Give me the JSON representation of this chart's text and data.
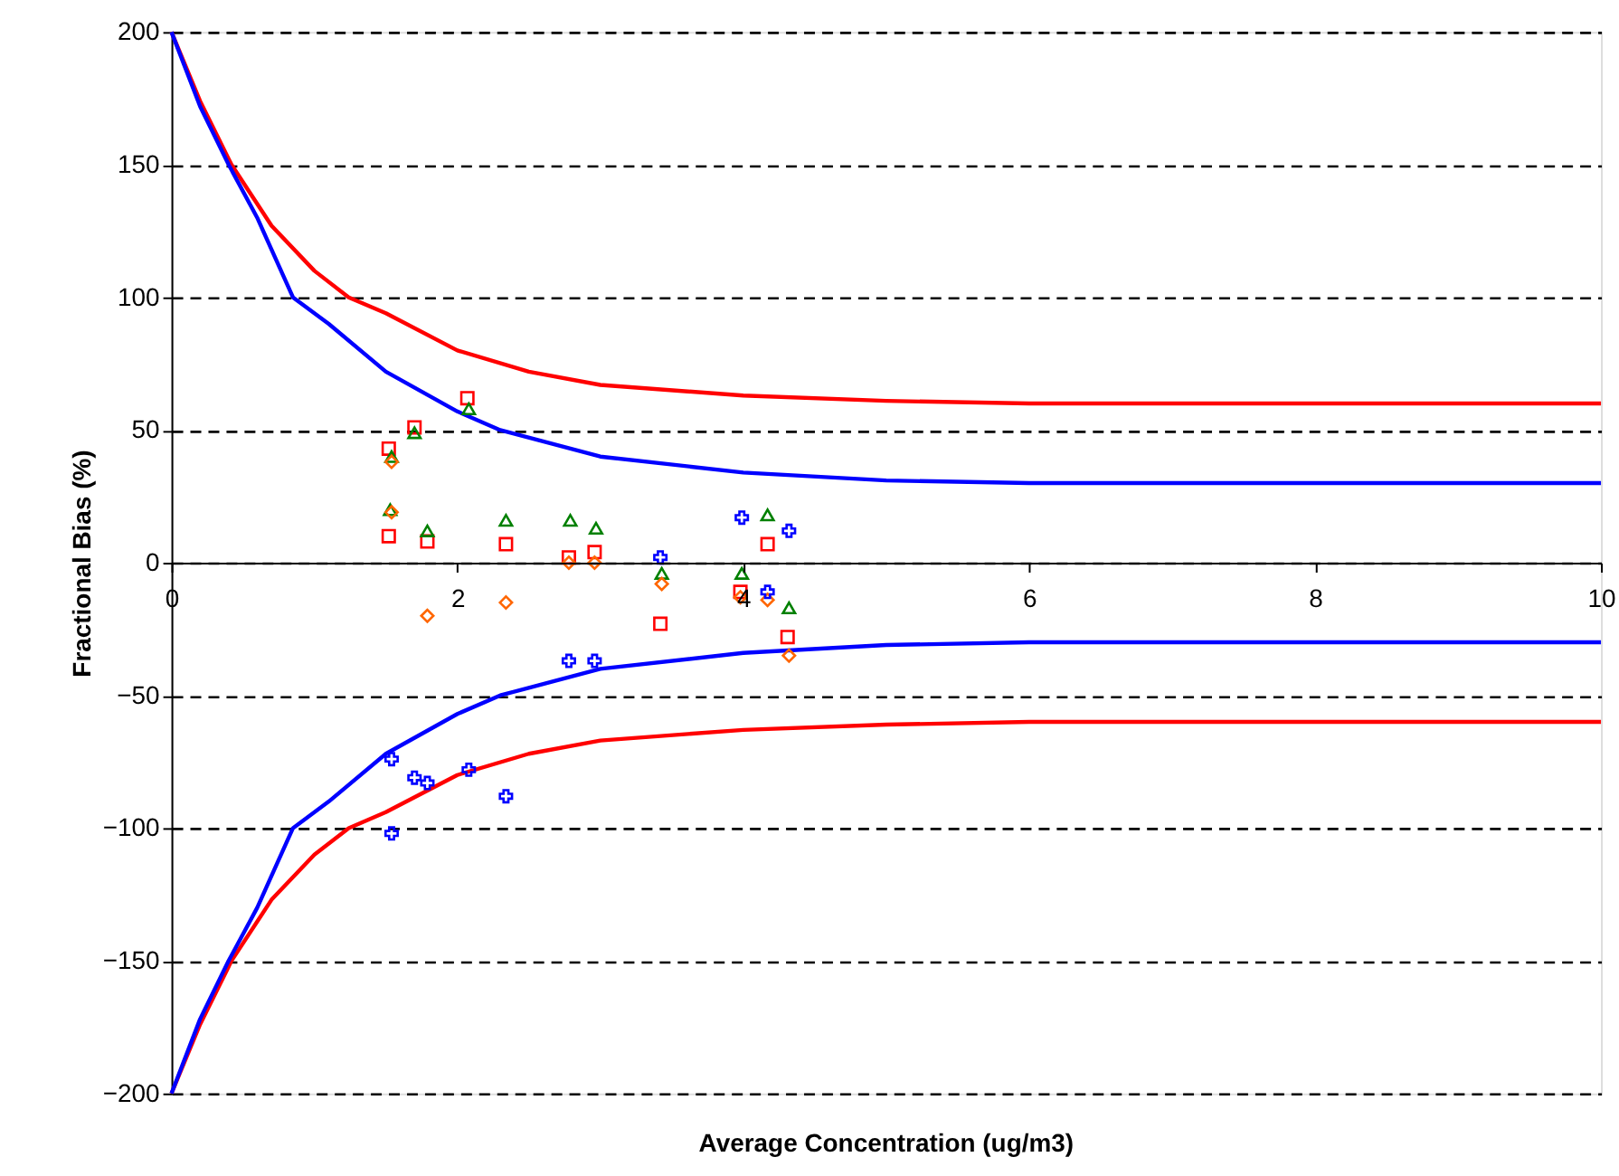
{
  "chart_data": {
    "type": "scatter",
    "xlabel": "Average Concentration (ug/m3)",
    "ylabel": "Fractional Bias (%)",
    "xlim": [
      0,
      10
    ],
    "xticks": [
      0,
      2,
      4,
      6,
      8,
      10
    ],
    "ylim": [
      -200,
      200
    ],
    "yticks": [
      -200,
      -150,
      -100,
      -50,
      0,
      50,
      100,
      150,
      200
    ],
    "grid": "y",
    "series": [
      {
        "type": "line",
        "color": "#ff0000",
        "x": [
          0,
          0.2,
          0.42,
          0.7,
          1.0,
          1.24,
          1.5,
          2,
          2.5,
          3,
          4,
          5,
          6,
          8,
          10
        ],
        "values": [
          200,
          174,
          150,
          127,
          110,
          100,
          94,
          80,
          72,
          67,
          63,
          61,
          60,
          60,
          60
        ]
      },
      {
        "type": "line",
        "color": "#ff0000",
        "x": [
          0,
          0.2,
          0.42,
          0.7,
          1.0,
          1.24,
          1.5,
          2,
          2.5,
          3,
          4,
          5,
          6,
          8,
          10
        ],
        "values": [
          -200,
          -174,
          -150,
          -127,
          -110,
          -100,
          -94,
          -80,
          -72,
          -67,
          -63,
          -61,
          -60,
          -60,
          -60
        ]
      },
      {
        "type": "line",
        "color": "#0000ff",
        "x": [
          0,
          0.2,
          0.4,
          0.6,
          0.85,
          1.1,
          1.5,
          2,
          2.3,
          3,
          4,
          5,
          6,
          8,
          10
        ],
        "values": [
          200,
          172,
          150,
          130,
          100,
          90,
          72,
          57,
          50,
          40,
          34,
          31,
          30,
          30,
          30
        ]
      },
      {
        "type": "line",
        "color": "#0000ff",
        "x": [
          0,
          0.2,
          0.4,
          0.6,
          0.85,
          1.1,
          1.5,
          2,
          2.3,
          3,
          4,
          5,
          6,
          8,
          10
        ],
        "values": [
          -200,
          -172,
          -150,
          -130,
          -100,
          -90,
          -72,
          -57,
          -50,
          -40,
          -34,
          -31,
          -30,
          -30,
          -30
        ]
      },
      {
        "marker": "square",
        "color": "#ff0000",
        "x": [
          1.52,
          1.7,
          2.07,
          1.52,
          1.79,
          2.34,
          2.78,
          2.96,
          3.42,
          4.17,
          3.98,
          4.31
        ],
        "values": [
          43,
          51,
          62,
          10,
          8,
          7,
          2,
          4,
          -23,
          7,
          -11,
          -28
        ]
      },
      {
        "marker": "triangle",
        "color": "#008000",
        "x": [
          1.54,
          1.7,
          2.08,
          1.53,
          1.79,
          2.34,
          2.79,
          2.97,
          3.43,
          4.17,
          3.99,
          4.32
        ],
        "values": [
          40,
          49,
          58,
          20,
          12,
          16,
          16,
          13,
          -4,
          18,
          -4,
          -17
        ]
      },
      {
        "marker": "diamond",
        "color": "#ff6600",
        "x": [
          1.54,
          1.54,
          1.79,
          2.34,
          2.78,
          2.96,
          3.43,
          3.98,
          4.17,
          4.32
        ],
        "values": [
          38,
          19,
          -20,
          -15,
          0,
          0,
          -8,
          -13,
          -14,
          -35
        ]
      },
      {
        "marker": "cross",
        "color": "#0000ff",
        "x": [
          3.42,
          2.78,
          2.96,
          1.54,
          1.7,
          1.79,
          2.08,
          2.34,
          1.54,
          3.99,
          4.32,
          4.17
        ],
        "values": [
          2,
          -37,
          -37,
          -74,
          -81,
          -83,
          -78,
          -88,
          -102,
          17,
          12,
          -11
        ]
      }
    ]
  }
}
